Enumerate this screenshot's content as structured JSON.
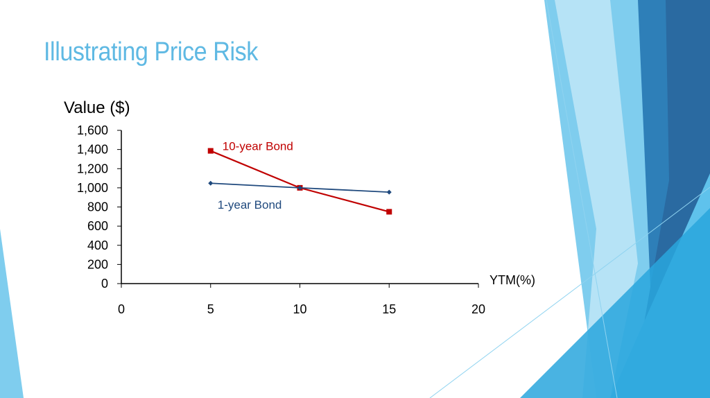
{
  "slide": {
    "title": "Illustrating Price Risk"
  },
  "chart_data": {
    "type": "line",
    "ylabel": "Value ($)",
    "xlabel": "YTM(%)",
    "xlim": [
      0,
      20
    ],
    "ylim": [
      0,
      1600
    ],
    "x_ticks": [
      0,
      5,
      10,
      15,
      20
    ],
    "y_ticks": [
      0,
      200,
      400,
      600,
      800,
      1000,
      1200,
      1400,
      1600
    ],
    "y_tick_labels": [
      "0",
      "200",
      "400",
      "600",
      "800",
      "1,000",
      "1,200",
      "1,400",
      "1,600"
    ],
    "grid": false,
    "series": [
      {
        "name": "10-year Bond",
        "color": "#c00000",
        "marker": "square",
        "x": [
          5,
          10,
          15
        ],
        "y": [
          1386,
          1000,
          750
        ]
      },
      {
        "name": "1-year Bond",
        "color": "#1f497d",
        "marker": "diamond",
        "x": [
          5,
          10,
          15
        ],
        "y": [
          1048,
          1000,
          955
        ]
      }
    ]
  }
}
